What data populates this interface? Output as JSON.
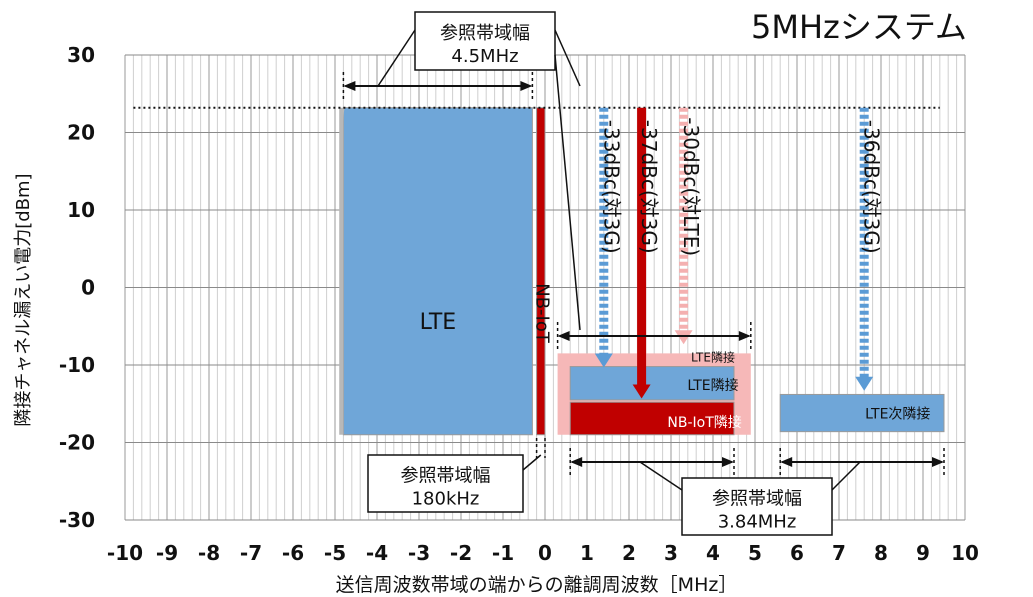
{
  "title": "5MHzシステム",
  "chart_data": {
    "type": "annotated_spectrum",
    "title": "5MHzシステム",
    "xlabel": "送信周波数帯域の端からの離調周波数［MHz］",
    "ylabel": "隣接チャネル漏えい電力[dBm]",
    "xlim": [
      -10,
      10
    ],
    "ylim": [
      -30,
      30
    ],
    "x_ticks": [
      "-10",
      "-9",
      "-8",
      "-7",
      "-6",
      "-5",
      "-4",
      "-3",
      "-2",
      "-1",
      "0",
      "1",
      "2",
      "3",
      "4",
      "5",
      "6",
      "7",
      "8",
      "9",
      "10"
    ],
    "y_ticks": [
      "30",
      "20",
      "10",
      "0",
      "-10",
      "-20",
      "-30"
    ],
    "grid": true,
    "reference_level_dbm": 23.2,
    "blocks": [
      {
        "label": "LTE",
        "x0": -4.8,
        "x1": -0.3,
        "y0": -19,
        "y1": 23.2,
        "color": "#6fa6d8"
      },
      {
        "label": "NB-IoT",
        "x0": -0.2,
        "x1": 0.0,
        "y0": -19,
        "y1": 23.2,
        "color": "#c00000"
      },
      {
        "label": "LTE隣接",
        "x0": 0.3,
        "x1": 4.9,
        "y0": -19,
        "y1": -8.5,
        "color": "#f6b8b8"
      },
      {
        "label": "LTE隣接",
        "x0": 0.6,
        "x1": 4.5,
        "y0": -14.5,
        "y1": -10.2,
        "color": "#6fa6d8"
      },
      {
        "label": "NB-IoT隣接",
        "x0": 0.6,
        "x1": 4.5,
        "y0": -19,
        "y1": -14.8,
        "color": "#c00000"
      },
      {
        "label": "LTE次隣接",
        "x0": 5.6,
        "x1": 9.5,
        "y0": -18.6,
        "y1": -13.8,
        "color": "#6fa6d8"
      }
    ],
    "attenuation_arrows": [
      {
        "label": "-33dBc(対3G)",
        "x": 1.4,
        "y_from": 23.2,
        "y_to": -9.8,
        "color": "#5b9bd5"
      },
      {
        "label": "-37dBc(対3G)",
        "x": 2.3,
        "y_from": 23.2,
        "y_to": -13.8,
        "color": "#c00000"
      },
      {
        "label": "-30dBc(対LTE)",
        "x": 3.3,
        "y_from": 23.2,
        "y_to": -6.8,
        "color": "#f4b0b0"
      },
      {
        "label": "-36dBc(対3G)",
        "x": 7.6,
        "y_from": 23.2,
        "y_to": -12.8,
        "color": "#5b9bd5"
      }
    ],
    "reference_bandwidths": [
      {
        "label": "参照帯域幅",
        "value": "4.5MHz",
        "x0": -4.8,
        "x1": -0.3
      },
      {
        "label": "参照帯域幅",
        "value": "180kHz",
        "x0": -0.2,
        "x1": 0.0
      },
      {
        "label": "参照帯域幅",
        "value": "3.84MHz",
        "x0": 0.6,
        "x1": 4.5
      },
      {
        "label": "参照帯域幅",
        "value": "3.84MHz",
        "x0": 5.6,
        "x1": 9.5
      }
    ]
  }
}
